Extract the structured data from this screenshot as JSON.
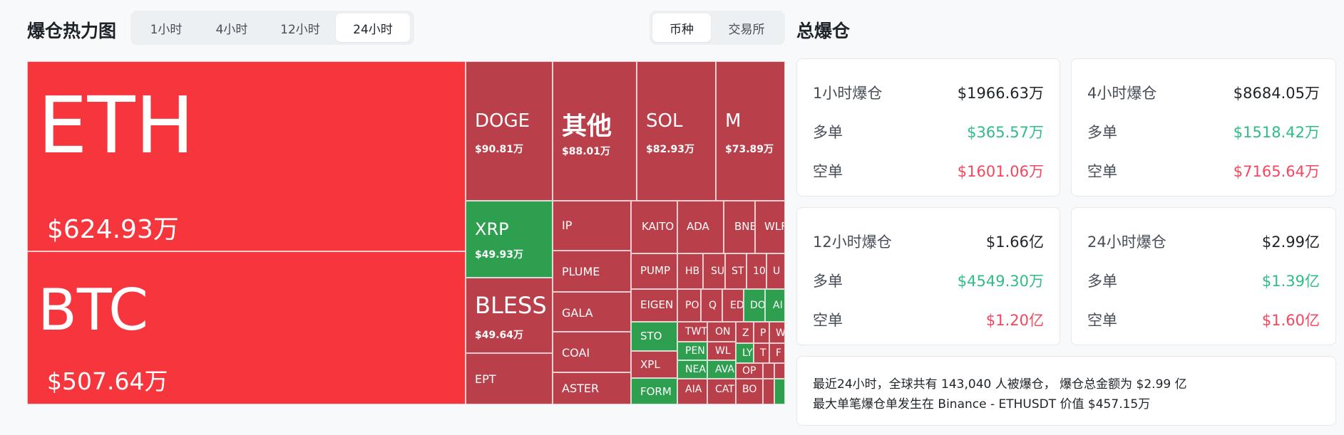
{
  "header": {
    "title": "爆仓热力图",
    "time_tabs": [
      "1小时",
      "4小时",
      "12小时",
      "24小时"
    ],
    "active_time_tab": "24小时",
    "view_tabs": [
      "币种",
      "交易所"
    ],
    "active_view_tab": "币种",
    "total_title": "总爆仓"
  },
  "treemap": {
    "colors": {
      "long_dominant": "#f6363c",
      "short_dominant": "#b9404a",
      "green": "#2e9e4f"
    },
    "tiles": [
      {
        "symbol": "ETH",
        "value": "$624.93万"
      },
      {
        "symbol": "BTC",
        "value": "$507.64万"
      },
      {
        "symbol": "DOGE",
        "value": "$90.81万"
      },
      {
        "symbol": "其他",
        "value": "$88.01万"
      },
      {
        "symbol": "SOL",
        "value": "$82.93万"
      },
      {
        "symbol": "M",
        "value": "$73.89万"
      },
      {
        "symbol": "XRP",
        "value": "$49.93万"
      },
      {
        "symbol": "BLESS",
        "value": "$49.64万"
      },
      {
        "symbol": "EPT"
      },
      {
        "symbol": "IP"
      },
      {
        "symbol": "PLUME"
      },
      {
        "symbol": "GALA"
      },
      {
        "symbol": "COAI"
      },
      {
        "symbol": "ASTER"
      },
      {
        "symbol": "KAITO"
      },
      {
        "symbol": "ADA"
      },
      {
        "symbol": "BNB"
      },
      {
        "symbol": "WLFI"
      },
      {
        "symbol": "PUMP"
      },
      {
        "symbol": "EIGEN"
      },
      {
        "symbol": "STO"
      },
      {
        "symbol": "XPL"
      },
      {
        "symbol": "FORM"
      },
      {
        "symbol": "HB"
      },
      {
        "symbol": "SU"
      },
      {
        "symbol": "ST"
      },
      {
        "symbol": "10"
      },
      {
        "symbol": "U"
      },
      {
        "symbol": "PO"
      },
      {
        "symbol": "Q"
      },
      {
        "symbol": "ED"
      },
      {
        "symbol": "DO"
      },
      {
        "symbol": "AI"
      },
      {
        "symbol": "TWT"
      },
      {
        "symbol": "ON"
      },
      {
        "symbol": "Z"
      },
      {
        "symbol": "P"
      },
      {
        "symbol": "W"
      },
      {
        "symbol": "PEN"
      },
      {
        "symbol": "WL"
      },
      {
        "symbol": "LY"
      },
      {
        "symbol": "T"
      },
      {
        "symbol": "F"
      },
      {
        "symbol": "NEA"
      },
      {
        "symbol": "AVA"
      },
      {
        "symbol": "OP"
      },
      {
        "symbol": "AIA"
      },
      {
        "symbol": "CAT"
      },
      {
        "symbol": "BO"
      }
    ]
  },
  "stats": [
    {
      "title": "1小时爆仓",
      "total": "$1966.63万",
      "long_label": "多单",
      "long": "$365.57万",
      "short_label": "空单",
      "short": "$1601.06万"
    },
    {
      "title": "4小时爆仓",
      "total": "$8684.05万",
      "long_label": "多单",
      "long": "$1518.42万",
      "short_label": "空单",
      "short": "$7165.64万"
    },
    {
      "title": "12小时爆仓",
      "total": "$1.66亿",
      "long_label": "多单",
      "long": "$4549.30万",
      "short_label": "空单",
      "short": "$1.20亿"
    },
    {
      "title": "24小时爆仓",
      "total": "$2.99亿",
      "long_label": "多单",
      "long": "$1.39亿",
      "short_label": "空单",
      "short": "$1.60亿"
    }
  ],
  "summary": {
    "line1": "最近24小时，全球共有 143,040 人被爆仓， 爆仓总金额为 $2.99 亿",
    "line2": "最大单笔爆仓单发生在 Binance - ETHUSDT 价值 $457.15万"
  }
}
